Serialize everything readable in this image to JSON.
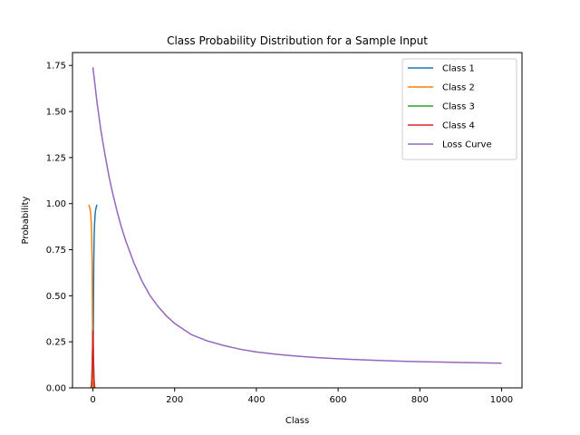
{
  "chart_data": {
    "type": "line",
    "title": "Class Probability Distribution for a Sample Input",
    "xlabel": "Class",
    "ylabel": "Probability",
    "xlim": [
      -50,
      1050
    ],
    "ylim": [
      0,
      1.82
    ],
    "xticks": [
      0,
      200,
      400,
      600,
      800,
      1000
    ],
    "xtick_labels": [
      "0",
      "200",
      "400",
      "600",
      "800",
      "1000"
    ],
    "yticks": [
      0,
      0.25,
      0.5,
      0.75,
      1.0,
      1.25,
      1.5,
      1.75
    ],
    "ytick_labels": [
      "0.00",
      "0.25",
      "0.50",
      "0.75",
      "1.00",
      "1.25",
      "1.50",
      "1.75"
    ],
    "grid": false,
    "legend_position": "top-right",
    "series": [
      {
        "name": "Class 1",
        "color": "#1f77b4",
        "x": [
          0,
          0.5,
          1,
          1.5,
          2,
          3,
          4,
          5,
          6,
          7,
          8,
          9,
          10
        ],
        "y": [
          0,
          0.1,
          0.28,
          0.5,
          0.68,
          0.82,
          0.89,
          0.93,
          0.955,
          0.97,
          0.98,
          0.988,
          0.994
        ]
      },
      {
        "name": "Class 2",
        "color": "#ff7f0e",
        "x": [
          -10,
          -9,
          -8,
          -7,
          -6,
          -5,
          -4,
          -3,
          -2,
          -1.5,
          -1,
          -0.5,
          0
        ],
        "y": [
          0.994,
          0.988,
          0.98,
          0.97,
          0.955,
          0.93,
          0.89,
          0.82,
          0.68,
          0.5,
          0.28,
          0.1,
          0
        ]
      },
      {
        "name": "Class 3",
        "color": "#2ca02c",
        "x": [
          -5,
          -4,
          -3,
          -2,
          -1,
          0,
          1,
          2,
          3,
          4,
          5
        ],
        "y": [
          0.0,
          0.01,
          0.04,
          0.1,
          0.2,
          0.25,
          0.2,
          0.1,
          0.04,
          0.01,
          0.0
        ]
      },
      {
        "name": "Class 4",
        "color": "#d62728",
        "x": [
          -4,
          -3,
          -2,
          -1,
          -0.5,
          0,
          0.5,
          1,
          2,
          3,
          4
        ],
        "y": [
          0.0,
          0.02,
          0.08,
          0.2,
          0.27,
          0.31,
          0.27,
          0.2,
          0.08,
          0.02,
          0.0
        ]
      },
      {
        "name": "Loss Curve",
        "color": "#9467bd",
        "x": [
          0,
          10,
          20,
          30,
          40,
          50,
          60,
          70,
          80,
          90,
          100,
          120,
          140,
          160,
          180,
          200,
          240,
          280,
          320,
          360,
          400,
          450,
          500,
          550,
          600,
          650,
          700,
          750,
          800,
          850,
          900,
          950,
          1000
        ],
        "y": [
          1.74,
          1.55,
          1.39,
          1.26,
          1.14,
          1.04,
          0.95,
          0.87,
          0.8,
          0.74,
          0.68,
          0.58,
          0.5,
          0.44,
          0.39,
          0.35,
          0.29,
          0.255,
          0.23,
          0.21,
          0.195,
          0.182,
          0.172,
          0.164,
          0.158,
          0.153,
          0.149,
          0.145,
          0.142,
          0.14,
          0.138,
          0.136,
          0.134
        ]
      }
    ]
  }
}
